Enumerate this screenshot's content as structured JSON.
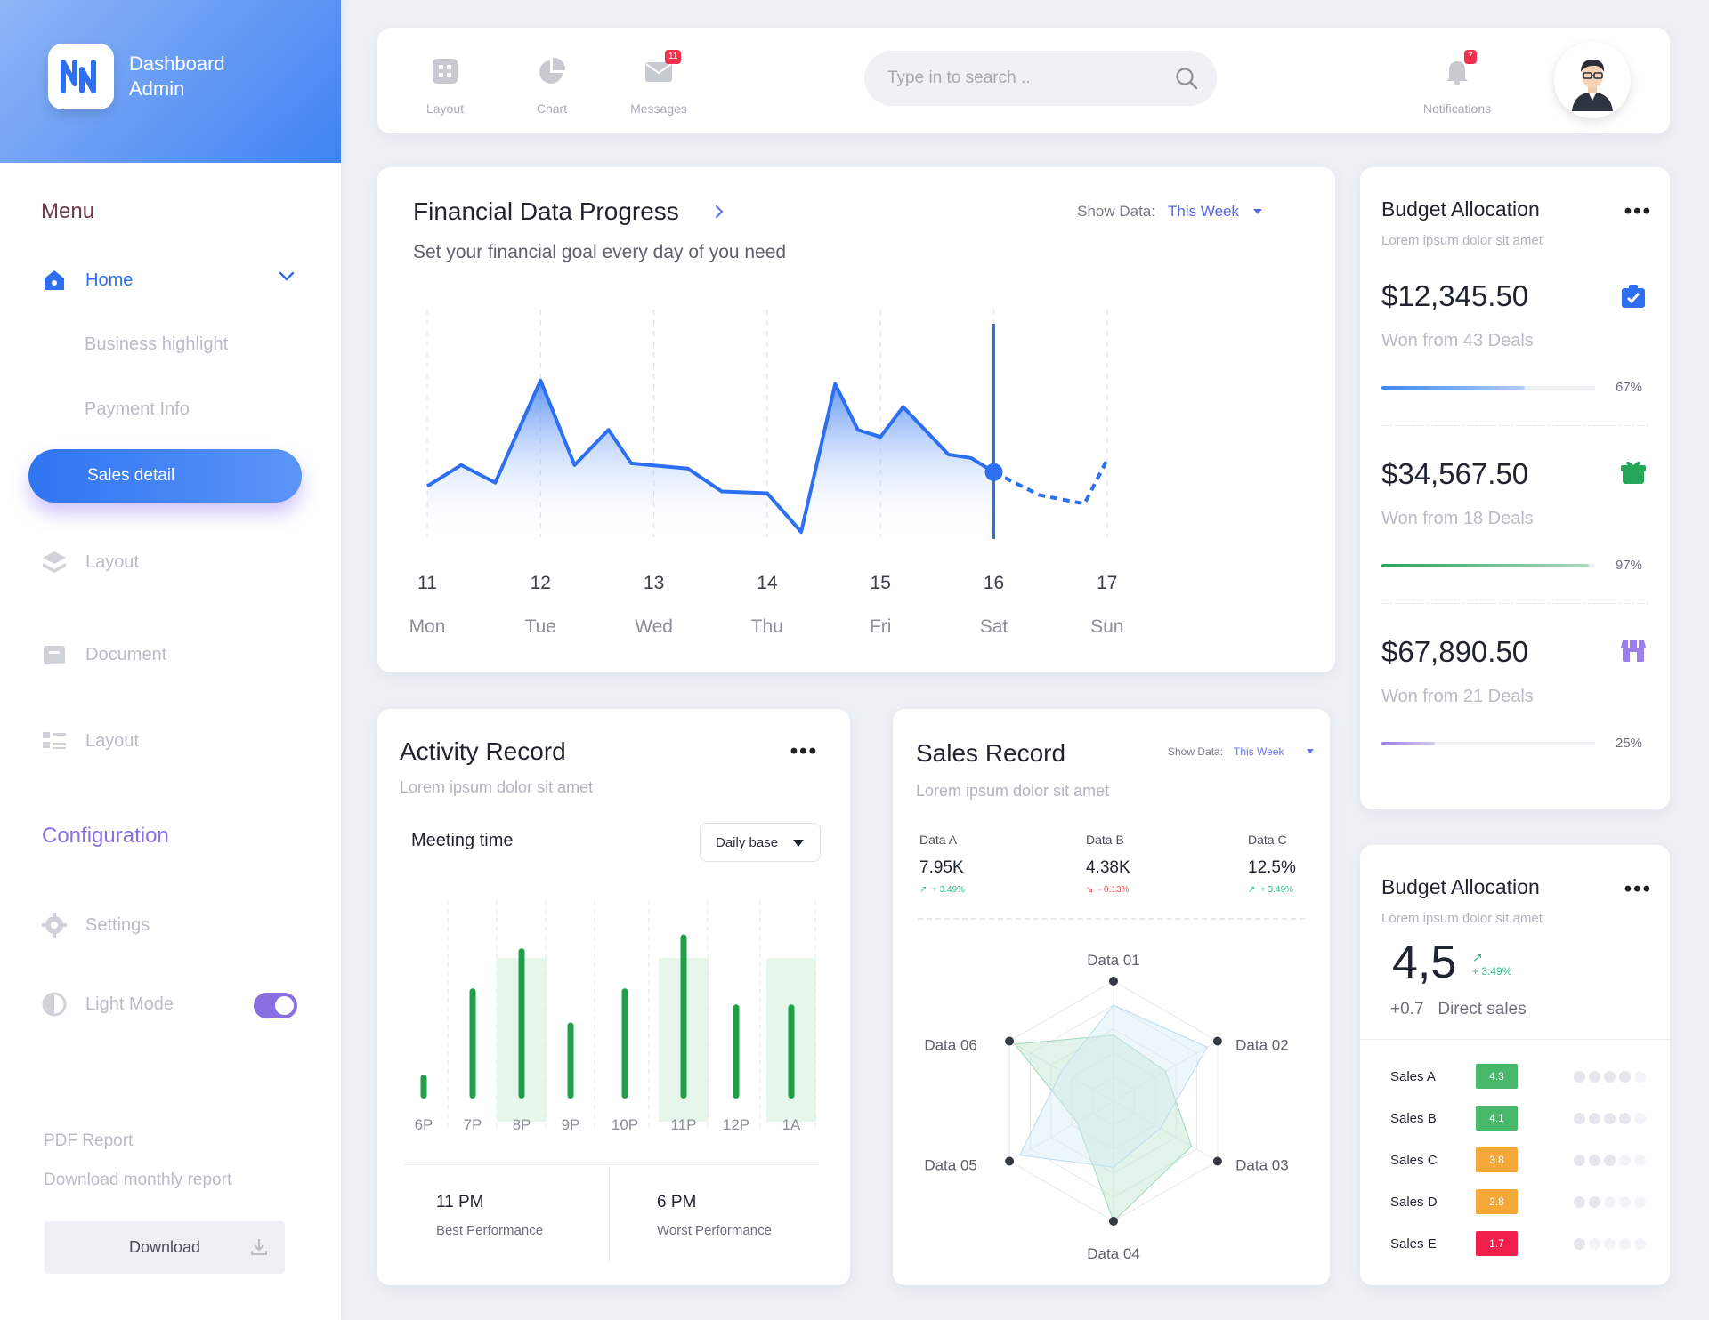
{
  "brand": {
    "line1": "Dashboard",
    "line2": "Admin",
    "logo_icon": "nn-logo-icon"
  },
  "sidebar": {
    "menu_heading": "Menu",
    "home": "Home",
    "sub_items": [
      "Business highlight",
      "Payment Info"
    ],
    "active_item": "Sales detail",
    "items": [
      {
        "label": "Layout",
        "icon": "layers-icon"
      },
      {
        "label": "Document",
        "icon": "archive-icon"
      },
      {
        "label": "Layout",
        "icon": "list-icon"
      }
    ],
    "config_heading": "Configuration",
    "settings": "Settings",
    "light_mode": "Light Mode",
    "light_mode_on": true,
    "pdf_title": "PDF Report",
    "pdf_sub": "Download monthly report",
    "download": "Download"
  },
  "topbar": {
    "tabs": [
      {
        "label": "Layout",
        "icon": "grid-icon"
      },
      {
        "label": "Chart",
        "icon": "pie-chart-icon"
      },
      {
        "label": "Messages",
        "icon": "mail-icon",
        "badge": "11"
      }
    ],
    "search_placeholder": "Type in to search ..",
    "notifications": {
      "label": "Notifications",
      "badge": "7"
    }
  },
  "financial": {
    "title": "Financial Data Progress",
    "subtitle": "Set your financial goal every day of you need",
    "show_data_label": "Show Data:",
    "show_data_value": "This Week"
  },
  "chart_data": [
    {
      "type": "area",
      "title": "Financial Data Progress",
      "categories": [
        {
          "day": "11",
          "name": "Mon"
        },
        {
          "day": "12",
          "name": "Tue"
        },
        {
          "day": "13",
          "name": "Wed"
        },
        {
          "day": "14",
          "name": "Thu"
        },
        {
          "day": "15",
          "name": "Fri"
        },
        {
          "day": "16",
          "name": "Sat"
        },
        {
          "day": "17",
          "name": "Sun"
        }
      ],
      "x": [
        0,
        0.3,
        0.6,
        1.0,
        1.3,
        1.6,
        1.8,
        2.3,
        2.6,
        3.0,
        3.3,
        3.6,
        3.8,
        4.0,
        4.2,
        4.6,
        4.8,
        5.0,
        5.4,
        5.8,
        6.0
      ],
      "y": [
        30,
        42,
        32,
        90,
        42,
        62,
        43,
        40,
        27,
        26,
        4,
        88,
        62,
        58,
        75,
        48,
        46,
        38,
        25,
        20,
        45
      ],
      "highlight_x": 5,
      "projected_from_x": 5
    },
    {
      "type": "bar",
      "title": "Meeting time",
      "categories": [
        "6P",
        "7P",
        "8P",
        "9P",
        "10P",
        "11P",
        "12P",
        "1A"
      ],
      "values": [
        12,
        55,
        75,
        38,
        55,
        82,
        47,
        47
      ],
      "highlighted": [
        "8P",
        "11P",
        "1A"
      ]
    },
    {
      "type": "radar",
      "axes": [
        "Data 01",
        "Data 02",
        "Data 03",
        "Data 04",
        "Data 05",
        "Data 06"
      ],
      "series": [
        {
          "values": [
            0.55,
            0.5,
            0.75,
            1.0,
            0.35,
            0.95
          ]
        },
        {
          "values": [
            0.8,
            0.9,
            0.45,
            0.55,
            0.9,
            0.5
          ]
        }
      ]
    }
  ],
  "budget1": {
    "title": "Budget Allocation",
    "subtitle": "Lorem ipsum dolor sit amet",
    "items": [
      {
        "amount": "$12,345.50",
        "deals": "Won from 43 Deals",
        "pct": "67%",
        "value": 0.67,
        "color": "#3d86f1",
        "icon": "clipboard-check-icon"
      },
      {
        "amount": "$34,567.50",
        "deals": "Won from 18 Deals",
        "pct": "97%",
        "value": 0.97,
        "color": "#26a65b",
        "icon": "gift-icon"
      },
      {
        "amount": "$67,890.50",
        "deals": "Won from 21 Deals",
        "pct": "25%",
        "value": 0.25,
        "color": "#9b7ee6",
        "icon": "store-icon"
      }
    ]
  },
  "activity": {
    "title": "Activity Record",
    "subtitle": "Lorem ipsum dolor sit amet",
    "meeting_label": "Meeting time",
    "select_value": "Daily base",
    "best": {
      "time": "11 PM",
      "label": "Best Performance"
    },
    "worst": {
      "time": "6 PM",
      "label": "Worst Performance"
    }
  },
  "sales_record": {
    "title": "Sales Record",
    "subtitle": "Lorem ipsum dolor sit amet",
    "show_data_label": "Show Data:",
    "show_data_value": "This Week",
    "metrics": [
      {
        "label": "Data A",
        "value": "7.95K",
        "delta": "+ 3.49%",
        "dir": "up"
      },
      {
        "label": "Data B",
        "value": "4.38K",
        "delta": "- 0.13%",
        "dir": "down"
      },
      {
        "label": "Data C",
        "value": "12.5%",
        "delta": "+ 3.49%",
        "dir": "up"
      }
    ]
  },
  "budget2": {
    "title": "Budget Allocation",
    "subtitle": "Lorem ipsum dolor sit amet",
    "rating": "4,5",
    "rating_delta": "+ 3.49%",
    "direct_delta": "+0.7",
    "direct_label": "Direct sales",
    "rows": [
      {
        "label": "Sales A",
        "value": "4.3",
        "color": "#47b76a",
        "dots": 4
      },
      {
        "label": "Sales B",
        "value": "4.1",
        "color": "#47b76a",
        "dots": 4
      },
      {
        "label": "Sales C",
        "value": "3.8",
        "color": "#f5a838",
        "dots": 3
      },
      {
        "label": "Sales  D",
        "value": "2.8",
        "color": "#f5a838",
        "dots": 2
      },
      {
        "label": "Sales E",
        "value": "1.7",
        "color": "#f01f4c",
        "dots": 1
      }
    ]
  }
}
